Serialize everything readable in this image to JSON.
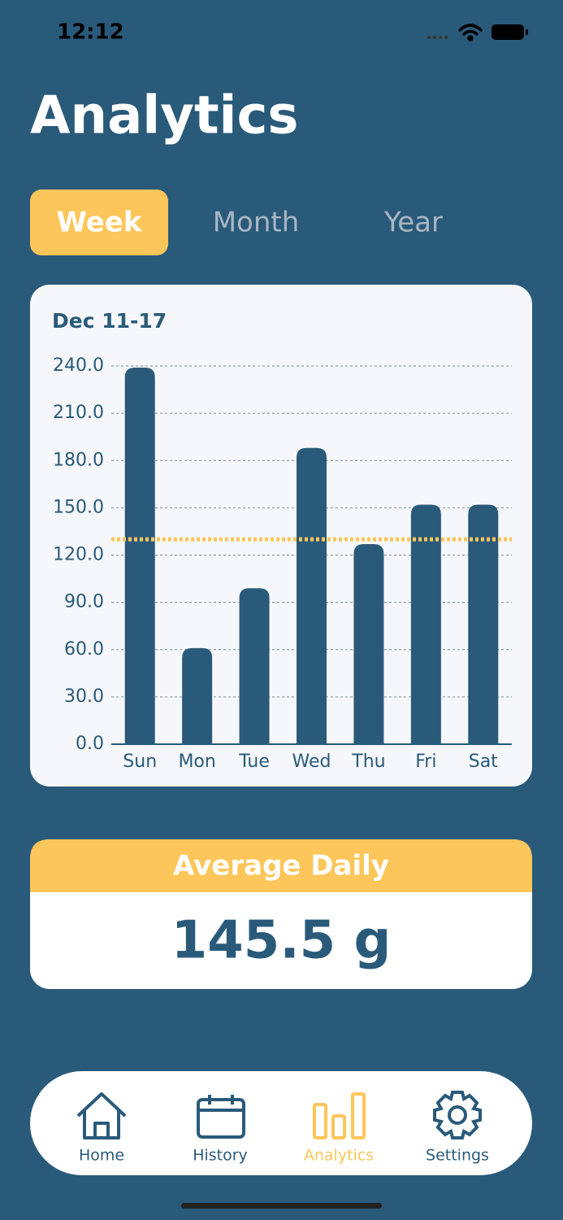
{
  "status_bar": {
    "time": "12:12"
  },
  "header": {
    "title": "Analytics"
  },
  "tabs": [
    "Week",
    "Month",
    "Year"
  ],
  "chart_data": {
    "type": "bar",
    "title": "Dec 11-17",
    "categories": [
      "Sun",
      "Mon",
      "Tue",
      "Wed",
      "Thu",
      "Fri",
      "Sat"
    ],
    "values": [
      239,
      61,
      99,
      188,
      127,
      152,
      152
    ],
    "color": "#2a5a7a",
    "ylim": [
      0,
      240
    ],
    "yticks": [
      {
        "value": 0,
        "label": "0.0"
      },
      {
        "value": 30,
        "label": "30.0"
      },
      {
        "value": 60,
        "label": "60.0"
      },
      {
        "value": 90,
        "label": "90.0"
      },
      {
        "value": 120,
        "label": "120.0"
      },
      {
        "value": 150,
        "label": "150.0"
      },
      {
        "value": 180,
        "label": "180.0"
      },
      {
        "value": 210,
        "label": "210.0"
      },
      {
        "value": 240,
        "label": "240.0"
      }
    ],
    "grid": true,
    "reference_line": 130,
    "reference_color": "#fdc65a"
  },
  "summary": {
    "label": "Average Daily",
    "value": "145.5 g"
  },
  "nav": [
    "Home",
    "History",
    "Analytics",
    "Settings"
  ]
}
